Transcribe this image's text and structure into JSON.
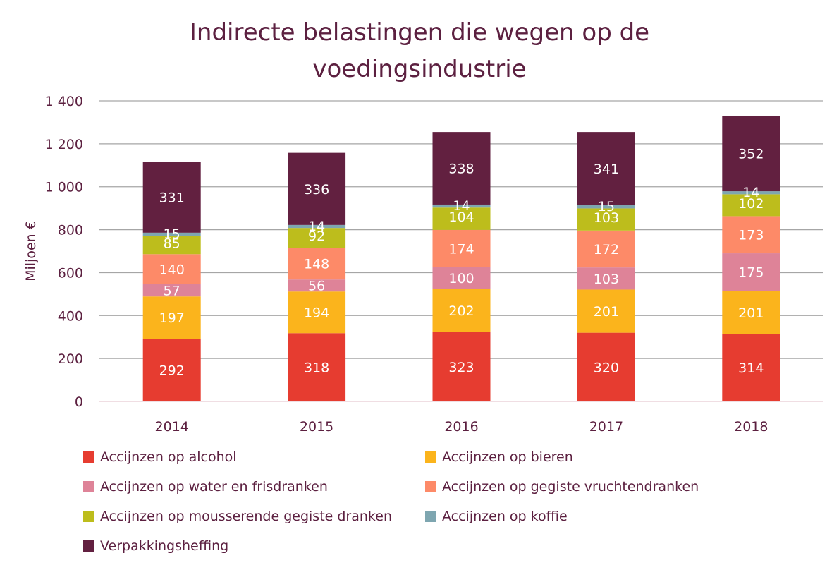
{
  "chart_data": {
    "type": "bar",
    "stacked": true,
    "title": "Indirecte belastingen die wegen op de voedingsindustrie",
    "title_lines": [
      "Indirecte belastingen die wegen op de",
      "voedingsindustrie"
    ],
    "xlabel": "",
    "ylabel": "Miljoen €",
    "ylim": [
      0,
      1400
    ],
    "yticks": [
      0,
      200,
      400,
      600,
      800,
      1000,
      1200,
      1400
    ],
    "ytick_labels": [
      "0",
      "200",
      "400",
      "600",
      "800",
      "1 000",
      "1 200",
      "1 400"
    ],
    "grid": true,
    "legend_position": "bottom",
    "categories": [
      "2014",
      "2015",
      "2016",
      "2017",
      "2018"
    ],
    "series": [
      {
        "name": "Accijnzen op alcohol",
        "color": "#e63c30",
        "values": [
          292,
          318,
          323,
          320,
          314
        ]
      },
      {
        "name": "Accijnzen op bieren",
        "color": "#fbb41c",
        "values": [
          197,
          194,
          202,
          201,
          201
        ]
      },
      {
        "name": "Accijnzen op water en frisdranken",
        "color": "#de8398",
        "values": [
          57,
          56,
          100,
          103,
          175
        ]
      },
      {
        "name": "Accijnzen op gegiste vruchtendranken",
        "color": "#fd8a68",
        "values": [
          140,
          148,
          174,
          172,
          173
        ]
      },
      {
        "name": "Accijnzen op mousserende gegiste dranken",
        "color": "#bdbd1c",
        "values": [
          85,
          92,
          104,
          103,
          102
        ]
      },
      {
        "name": "Accijnzen op koffie",
        "color": "#7ea6b0",
        "values": [
          15,
          14,
          14,
          15,
          14
        ]
      },
      {
        "name": "Verpakkingsheffing",
        "color": "#622040",
        "values": [
          331,
          336,
          338,
          341,
          352
        ]
      }
    ]
  },
  "colors": {
    "text": "#5c2040",
    "grid": "#a6a6a6",
    "label": "#ffffff"
  }
}
